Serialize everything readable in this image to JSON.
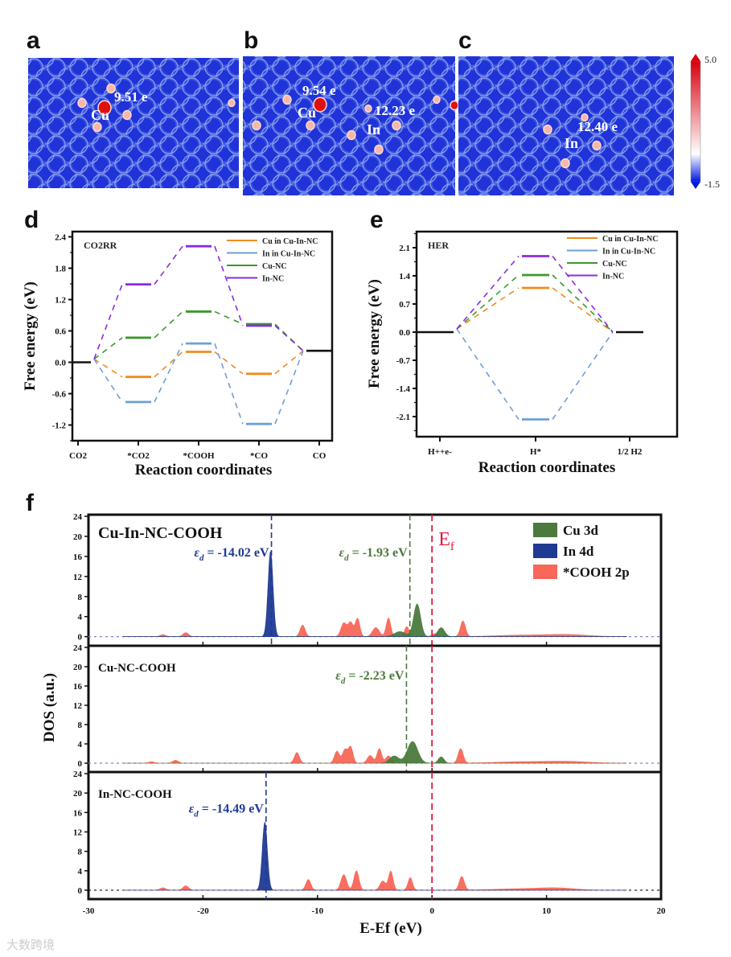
{
  "panel_labels": {
    "a": "a",
    "b": "b",
    "c": "c",
    "d": "d",
    "e": "e",
    "f": "f"
  },
  "maps": {
    "a": {
      "charge": "9.51 e",
      "atom1": "Cu"
    },
    "b": {
      "charge1": "9.54 e",
      "atom1": "Cu",
      "charge2": "12.23 e",
      "atom2": "In"
    },
    "c": {
      "charge": "12.40 e",
      "atom1": "In"
    },
    "colorbar": {
      "max": "5.0",
      "min": "-1.5",
      "colors": [
        "#d7000f",
        "#ffffff",
        "#0018e0"
      ]
    }
  },
  "watermark": "大数跨境",
  "chart_data": [
    {
      "id": "d",
      "type": "line",
      "subtype": "free-energy-diagram",
      "annotation": "CO2RR",
      "ylabel": "Free energy (eV)",
      "xlabel": "Reaction coordinates",
      "ylim": [
        -1.5,
        2.5
      ],
      "yticks": [
        "2.4",
        "1.8",
        "1.2",
        "0.6",
        "0.0",
        "-0.6",
        "-1.2"
      ],
      "categories": [
        "CO2",
        "*CO2",
        "*COOH",
        "*CO",
        "CO"
      ],
      "series": [
        {
          "name": "Cu in Cu-In-NC",
          "color": "#f28a1e",
          "values": [
            0,
            -0.28,
            0.2,
            -0.22,
            0.22
          ]
        },
        {
          "name": "In in Cu-In-NC",
          "color": "#6e9fd6",
          "values": [
            0,
            -0.76,
            0.36,
            -1.18,
            0.22
          ]
        },
        {
          "name": "Cu-NC",
          "color": "#3b9a2b",
          "values": [
            0,
            0.47,
            0.97,
            0.73,
            0.22
          ]
        },
        {
          "name": "In-NC",
          "color": "#8a2be2",
          "values": [
            0,
            1.49,
            2.22,
            0.7,
            0.22
          ]
        }
      ]
    },
    {
      "id": "e",
      "type": "line",
      "subtype": "free-energy-diagram",
      "annotation": "HER",
      "ylabel": "Free energy (eV)",
      "xlabel": "Reaction coordinates",
      "ylim": [
        -2.6,
        2.5
      ],
      "yticks": [
        "2.1",
        "1.4",
        "0.7",
        "0.0",
        "-0.7",
        "-1.4",
        "-2.1"
      ],
      "categories": [
        "H++e-",
        "H*",
        "1/2 H2"
      ],
      "series": [
        {
          "name": "Cu in Cu-In-NC",
          "color": "#f28a1e",
          "values": [
            0,
            1.1,
            0
          ]
        },
        {
          "name": "In in Cu-In-NC",
          "color": "#6e9fd6",
          "values": [
            0,
            -2.17,
            0
          ]
        },
        {
          "name": "Cu-NC",
          "color": "#3b9a2b",
          "values": [
            0,
            1.42,
            0
          ]
        },
        {
          "name": "In-NC",
          "color": "#8a2be2",
          "values": [
            0,
            1.89,
            0
          ]
        }
      ]
    },
    {
      "id": "f",
      "type": "area",
      "subtype": "density-of-states",
      "xlabel": "E-Ef (eV)",
      "ylabel": "DOS (a.u.)",
      "xlim": [
        -30,
        20
      ],
      "xticks": [
        "-30",
        "-20",
        "-10",
        "0",
        "10",
        "20"
      ],
      "ylim": [
        -1.5,
        24
      ],
      "yticks": [
        "24",
        "20",
        "16",
        "12",
        "8",
        "4",
        "0"
      ],
      "fermi_level": 0,
      "fermi_label": "Ef",
      "legend": [
        {
          "name": "Cu 3d",
          "color": "#4a7a3c"
        },
        {
          "name": "In 4d",
          "color": "#1f3a93"
        },
        {
          "name": "*COOH 2p",
          "color": "#f8675a"
        }
      ],
      "panels": [
        {
          "title": "Cu-In-NC-COOH",
          "d_band_centers": [
            {
              "value": -14.02,
              "label": "= -14.02 eV",
              "color": "#1f3a93"
            },
            {
              "value": -1.93,
              "label": "= -1.93 eV",
              "color": "#4a7a3c"
            }
          ],
          "peaks": {
            "*COOH 2p": [
              [
                -23.5,
                0.4,
                0.25
              ],
              [
                -21.5,
                0.8,
                0.25
              ],
              [
                -11.3,
                2.3,
                0.22
              ],
              [
                -7.7,
                2.7,
                0.25
              ],
              [
                -7.1,
                2.8,
                0.22
              ],
              [
                -6.5,
                3.6,
                0.2
              ],
              [
                -4.9,
                1.8,
                0.3
              ],
              [
                -3.8,
                3.7,
                0.2
              ],
              [
                -2.2,
                2.0,
                0.2
              ],
              [
                0.3,
                0.6,
                0.3
              ],
              [
                2.7,
                3.1,
                0.22
              ],
              [
                8,
                0.3,
                2.5
              ],
              [
                12,
                0.35,
                1.8
              ]
            ],
            "Cu 3d": [
              [
                -2.8,
                1.0,
                0.5
              ],
              [
                -1.3,
                6.5,
                0.3
              ],
              [
                0.8,
                1.8,
                0.3
              ]
            ],
            "In 4d": [
              [
                -14.1,
                17,
                0.22
              ]
            ]
          }
        },
        {
          "title": "Cu-NC-COOH",
          "d_band_centers": [
            {
              "value": -2.23,
              "label": "= -2.23 eV",
              "color": "#4a7a3c"
            }
          ],
          "peaks": {
            "*COOH 2p": [
              [
                -24.5,
                0.3,
                0.25
              ],
              [
                -22.4,
                0.6,
                0.25
              ],
              [
                -11.8,
                2.2,
                0.22
              ],
              [
                -8.3,
                2.5,
                0.22
              ],
              [
                -7.6,
                2.8,
                0.22
              ],
              [
                -7.1,
                3.3,
                0.2
              ],
              [
                -5.4,
                1.6,
                0.25
              ],
              [
                -4.6,
                3.0,
                0.2
              ],
              [
                -3.8,
                1.5,
                0.25
              ],
              [
                2.5,
                3.0,
                0.22
              ],
              [
                8,
                0.3,
                2.5
              ],
              [
                12,
                0.3,
                1.8
              ]
            ],
            "Cu 3d": [
              [
                -3.3,
                1.5,
                0.4
              ],
              [
                -1.7,
                4.5,
                0.45
              ],
              [
                0.8,
                1.3,
                0.25
              ]
            ],
            "In 4d": []
          }
        },
        {
          "title": "In-NC-COOH",
          "d_band_centers": [
            {
              "value": -14.49,
              "label": "= -14.49 eV",
              "color": "#1f3a93"
            }
          ],
          "peaks": {
            "*COOH 2p": [
              [
                -23.5,
                0.5,
                0.25
              ],
              [
                -21.5,
                0.9,
                0.25
              ],
              [
                -10.8,
                2.2,
                0.22
              ],
              [
                -7.7,
                3.2,
                0.25
              ],
              [
                -6.6,
                4.0,
                0.22
              ],
              [
                -4.3,
                1.9,
                0.25
              ],
              [
                -3.6,
                3.9,
                0.2
              ],
              [
                -1.9,
                2.6,
                0.2
              ],
              [
                2.6,
                2.8,
                0.22
              ],
              [
                8,
                0.3,
                2.5
              ],
              [
                11,
                0.35,
                1.5
              ]
            ],
            "Cu 3d": [],
            "In 4d": [
              [
                -14.6,
                14,
                0.22
              ]
            ]
          }
        }
      ]
    }
  ]
}
